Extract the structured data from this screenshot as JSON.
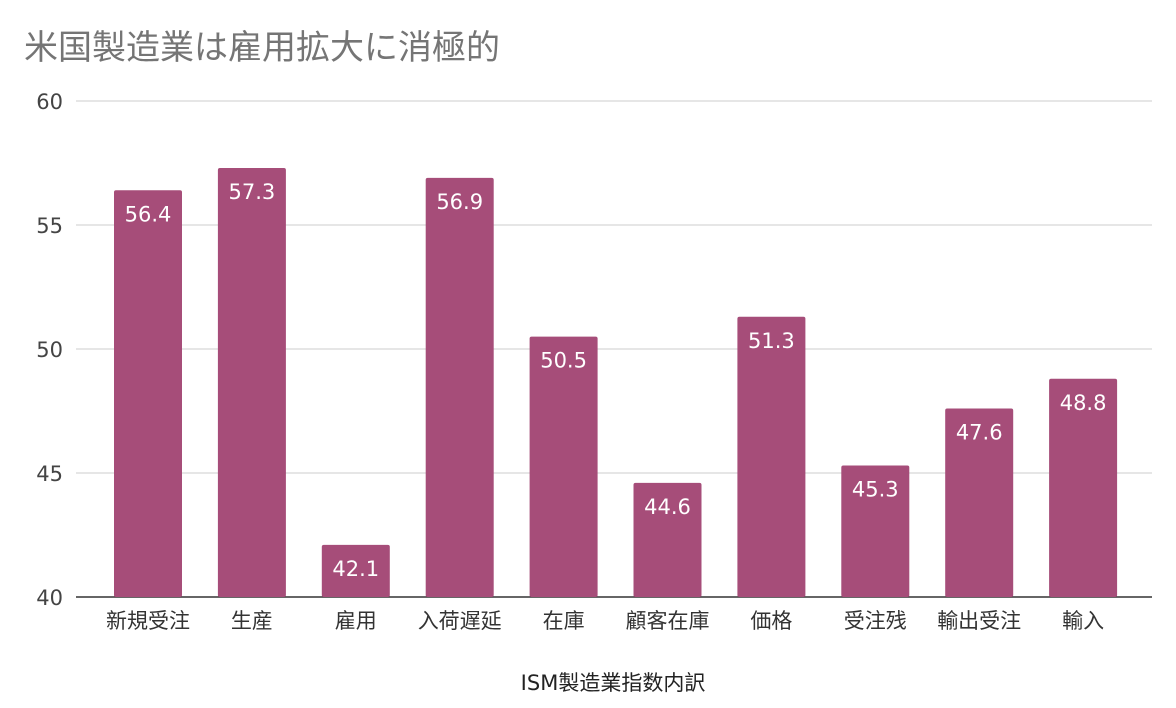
{
  "chart_data": {
    "type": "bar",
    "title": "米国製造業は雇用拡大に消極的",
    "xlabel": "ISM製造業指数内訳",
    "ylabel": "",
    "categories": [
      "新規受注",
      "生産",
      "雇用",
      "入荷遅延",
      "在庫",
      "顧客在庫",
      "価格",
      "受注残",
      "輸出受注",
      "輸入"
    ],
    "values": [
      56.4,
      57.3,
      42.1,
      56.9,
      50.5,
      44.6,
      51.3,
      45.3,
      47.6,
      48.8
    ],
    "ylim": [
      40,
      60
    ],
    "yticks": [
      40,
      45,
      50,
      55,
      60
    ],
    "grid": true,
    "legend": "none",
    "data_labels": true,
    "bar_color": "#a64d79",
    "label_color": "#ffffff"
  }
}
